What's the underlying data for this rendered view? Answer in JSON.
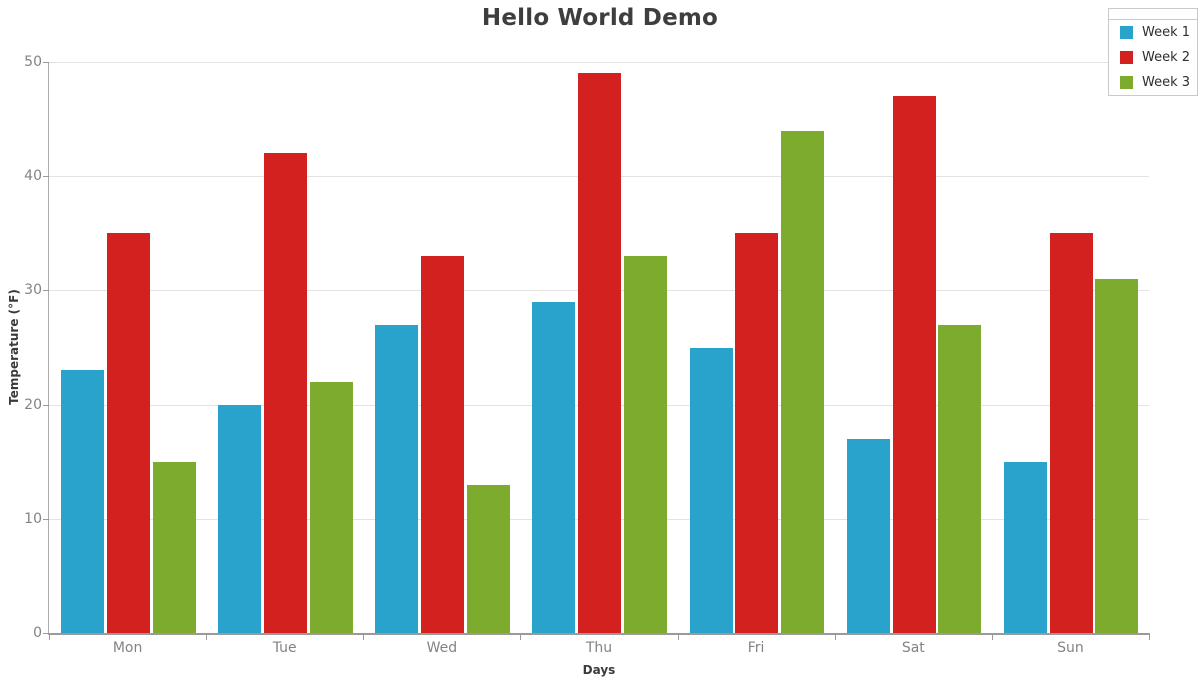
{
  "title": "Hello World Demo",
  "chart_data": {
    "type": "bar",
    "title": "Hello World Demo",
    "xlabel": "Days",
    "ylabel": "Temperature (°F)",
    "categories": [
      "Mon",
      "Tue",
      "Wed",
      "Thu",
      "Fri",
      "Sat",
      "Sun"
    ],
    "series": [
      {
        "name": "Week 1",
        "color": "#29A3CC",
        "values": [
          23,
          20,
          27,
          29,
          25,
          17,
          15
        ]
      },
      {
        "name": "Week 2",
        "color": "#D2211E",
        "values": [
          35,
          42,
          33,
          49,
          35,
          47,
          35
        ]
      },
      {
        "name": "Week 3",
        "color": "#7CAB2E",
        "values": [
          15,
          22,
          13,
          33,
          44,
          27,
          31
        ]
      }
    ],
    "ylim": [
      0,
      50
    ],
    "yticks": [
      0,
      10,
      20,
      30,
      40,
      50
    ],
    "grid": true,
    "legend_position": "top-right"
  },
  "colors": {
    "background": "#ffffff",
    "grid": "#e3e3e3",
    "axis": "#9a9a9a",
    "tick_text": "#838383",
    "title_text": "#3e3e3e",
    "axis_title_text": "#3a3a3a",
    "legend_border": "#c9c9c9"
  }
}
